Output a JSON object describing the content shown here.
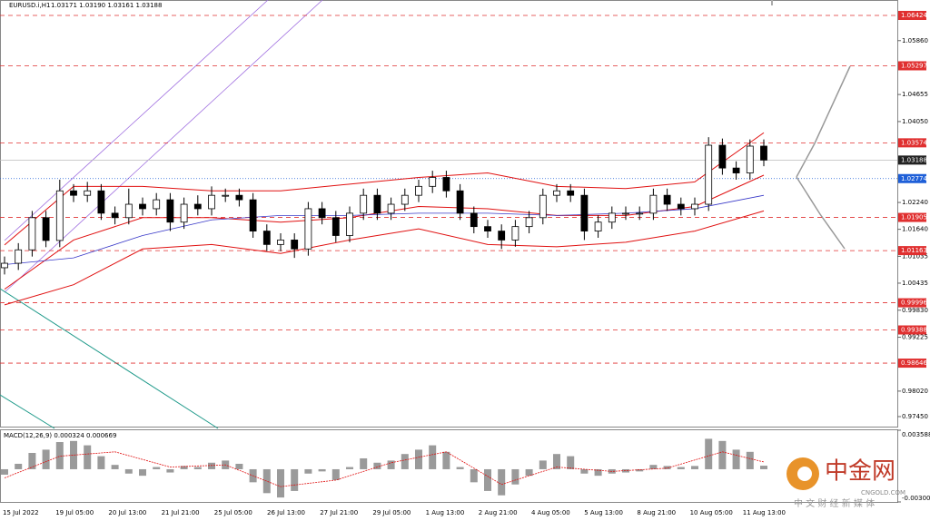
{
  "chart_data": {
    "type": "candlestick",
    "title": "EURUSD.i,H1",
    "ohlc_text": "1.03171 1.03190 1.03161 1.03188",
    "open": [
      1.0078,
      1.0088,
      1.0118,
      1.019,
      1.0139,
      1.025,
      1.024,
      1.025,
      1.02,
      1.019,
      1.022,
      1.021,
      1.023,
      1.018,
      1.022,
      1.021,
      1.024,
      1.024,
      1.023,
      1.016,
      1.013,
      1.014,
      1.012,
      1.021,
      1.019,
      1.015,
      1.02,
      1.024,
      1.02,
      1.022,
      1.024,
      1.026,
      1.028,
      1.025,
      1.02,
      1.017,
      1.016,
      1.014,
      1.017,
      1.019,
      1.024,
      1.025,
      1.024,
      1.016,
      1.018,
      1.02,
      1.02,
      1.02,
      1.024,
      1.022,
      1.021,
      1.022,
      1.0352,
      1.0301,
      1.029,
      1.035
    ],
    "high": [
      1.0103,
      1.0133,
      1.0205,
      1.0205,
      1.0275,
      1.0265,
      1.027,
      1.0265,
      1.0215,
      1.0255,
      1.0235,
      1.0245,
      1.0245,
      1.0235,
      1.024,
      1.026,
      1.0255,
      1.0255,
      1.0245,
      1.0175,
      1.0155,
      1.0155,
      1.0225,
      1.0225,
      1.0205,
      1.0215,
      1.0255,
      1.0255,
      1.0235,
      1.0255,
      1.0275,
      1.0295,
      1.0295,
      1.0265,
      1.0215,
      1.0185,
      1.0175,
      1.0185,
      1.0205,
      1.0255,
      1.0265,
      1.0265,
      1.0255,
      1.0195,
      1.0215,
      1.0215,
      1.0215,
      1.0255,
      1.0255,
      1.0235,
      1.0235,
      1.037,
      1.0367,
      1.0316,
      1.0365,
      1.0365
    ],
    "low": [
      1.0063,
      1.0073,
      1.0103,
      1.0124,
      1.0124,
      1.0225,
      1.0225,
      1.0185,
      1.0175,
      1.0175,
      1.0195,
      1.0195,
      1.016,
      1.0165,
      1.0195,
      1.0195,
      1.0225,
      1.0215,
      1.0145,
      1.0115,
      1.0115,
      1.01,
      1.0105,
      1.0175,
      1.0135,
      1.0135,
      1.0185,
      1.0185,
      1.0185,
      1.0205,
      1.0225,
      1.0245,
      1.0235,
      1.0185,
      1.0155,
      1.0145,
      1.012,
      1.0125,
      1.0155,
      1.0175,
      1.0225,
      1.0225,
      1.014,
      1.0145,
      1.0165,
      1.0185,
      1.0185,
      1.0185,
      1.0205,
      1.0195,
      1.0195,
      1.0205,
      1.0286,
      1.0275,
      1.0275,
      1.0305
    ],
    "close": [
      1.0088,
      1.0118,
      1.019,
      1.0139,
      1.025,
      1.024,
      1.025,
      1.02,
      1.019,
      1.022,
      1.021,
      1.023,
      1.018,
      1.022,
      1.021,
      1.024,
      1.024,
      1.023,
      1.016,
      1.013,
      1.014,
      1.012,
      1.021,
      1.019,
      1.015,
      1.02,
      1.024,
      1.02,
      1.022,
      1.024,
      1.026,
      1.028,
      1.025,
      1.02,
      1.017,
      1.016,
      1.014,
      1.017,
      1.019,
      1.024,
      1.025,
      1.024,
      1.016,
      1.018,
      1.02,
      1.02,
      1.02,
      1.024,
      1.022,
      1.021,
      1.022,
      1.0352,
      1.0301,
      1.029,
      1.035,
      1.03188
    ],
    "ylim": [
      0.97226,
      1.06769
    ],
    "yticks": [
      {
        "value": 1.0586,
        "label": "1.05860"
      },
      1.04655,
      {
        "value": 1.0405,
        "label": "1.04050"
      },
      {
        "value": 1.0224,
        "label": "1.02240"
      },
      {
        "value": 1.0164,
        "label": "1.01640"
      },
      1.01035,
      1.00435,
      {
        "value": 0.9983,
        "label": "0.99830"
      },
      0.99225,
      {
        "value": 0.9802,
        "label": "0.98020"
      },
      {
        "value": 0.9745,
        "label": "0.97450"
      }
    ],
    "levels": [
      {
        "value": 1.06424,
        "color": "#e03030"
      },
      {
        "value": 1.05297,
        "color": "#e03030"
      },
      {
        "value": 1.03574,
        "color": "#e03030"
      },
      {
        "value": 1.02774,
        "color": "#1e5fd8"
      },
      {
        "value": 1.01905,
        "color": "#e03030"
      },
      {
        "value": 1.01163,
        "color": "#e03030"
      },
      {
        "value": 0.99996,
        "color": "#e03030"
      },
      {
        "value": 0.99388,
        "color": "#e03030"
      },
      {
        "value": 0.98646,
        "color": "#e03030"
      }
    ],
    "current_price": 1.03188,
    "bollinger": {
      "color": "#e01010",
      "x": [
        0,
        5,
        10,
        15,
        20,
        25,
        30,
        35,
        40,
        45,
        50,
        55
      ],
      "upper": [
        1.0129,
        1.026,
        1.026,
        1.025,
        1.025,
        1.0265,
        1.028,
        1.029,
        1.026,
        1.0255,
        1.027,
        1.038
      ],
      "middle": [
        1.003,
        1.014,
        1.019,
        1.019,
        1.018,
        1.019,
        1.0215,
        1.021,
        1.0195,
        1.0195,
        1.0215,
        1.0285
      ],
      "lower": [
        0.9995,
        1.004,
        1.012,
        1.013,
        1.011,
        1.014,
        1.0165,
        1.013,
        1.0125,
        1.0135,
        1.016,
        1.0205
      ]
    },
    "ma": {
      "color": "#3838c8",
      "x": [
        0,
        5,
        10,
        15,
        20,
        25,
        30,
        35,
        40,
        45,
        50,
        55
      ],
      "values": [
        1.0085,
        1.01,
        1.015,
        1.0185,
        1.0195,
        1.0195,
        1.02,
        1.02,
        1.0195,
        1.02,
        1.021,
        1.024
      ]
    },
    "x_labels": [
      "15 Jul 2022",
      "19 Jul 05:00",
      "20 Jul 13:00",
      "21 Jul 21:00",
      "25 Jul 05:00",
      "26 Jul 13:00",
      "27 Jul 21:00",
      "29 Jul 05:00",
      "1 Aug 13:00",
      "2 Aug 21:00",
      "4 Aug 05:00",
      "5 Aug 13:00",
      "8 Aug 21:00",
      "10 Aug 05:00",
      "11 Aug 13:00"
    ],
    "macd": {
      "title": "MACD(12,26,9) 0.000324 0.000669",
      "ylim": [
        -0.003009,
        0.003588
      ],
      "yticks": [
        0.003588,
        -0.003009
      ],
      "values": [
        -0.0005,
        0.0005,
        0.0015,
        0.0018,
        0.0025,
        0.0026,
        0.0022,
        0.0012,
        0.0004,
        -0.0004,
        -0.0006,
        0.0002,
        -0.0003,
        0.0003,
        0.0002,
        0.0006,
        0.0008,
        0.0005,
        -0.0012,
        -0.0022,
        -0.0026,
        -0.002,
        -0.0004,
        -0.0002,
        -0.001,
        0.0002,
        0.001,
        0.0006,
        0.0008,
        0.0014,
        0.0018,
        0.0022,
        0.0016,
        0.0002,
        -0.0012,
        -0.002,
        -0.0024,
        -0.0014,
        -0.0006,
        0.0008,
        0.0014,
        0.0012,
        -0.0004,
        -0.0006,
        -0.0004,
        -0.0003,
        -0.0002,
        0.0004,
        0.0003,
        0.0002,
        0.0003,
        0.0028,
        0.0026,
        0.0018,
        0.0016,
        0.000324
      ],
      "signal": {
        "color": "#e01010",
        "x": [
          0,
          4,
          8,
          12,
          16,
          20,
          24,
          28,
          32,
          36,
          40,
          44,
          48,
          52,
          55
        ],
        "values": [
          -0.0008,
          0.0012,
          0.0016,
          0.0002,
          0.0004,
          -0.0016,
          -0.001,
          0.0006,
          0.0016,
          -0.0014,
          0.0002,
          -0.0002,
          0.0001,
          0.0016,
          0.000669
        ]
      }
    },
    "watermark": {
      "brand": "中金网",
      "domain": "CNGOLD.COM",
      "slogan": "中 文 财 经 新 媒 体"
    }
  }
}
